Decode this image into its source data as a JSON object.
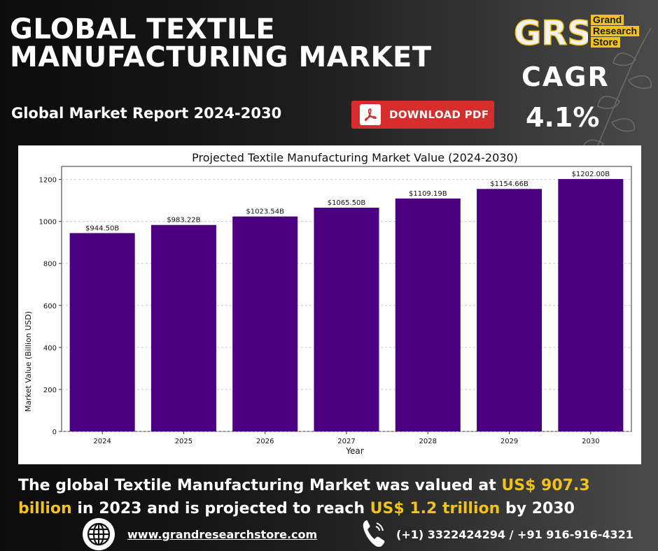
{
  "header": {
    "title_line1": "GLOBAL TEXTILE",
    "title_line2": "MANUFACTURING MARKET",
    "subtitle": "Global Market Report 2024-2030",
    "download_label": "DOWNLOAD PDF"
  },
  "logo": {
    "mark": "GRS",
    "word1": "Grand",
    "word2": "Research",
    "word3": "Store"
  },
  "cagr": {
    "label": "CAGR",
    "value": "4.1%"
  },
  "chart_data": {
    "type": "bar",
    "title": "Projected Textile Manufacturing Market Value (2024-2030)",
    "xlabel": "Year",
    "ylabel": "Market Value (Billion USD)",
    "categories": [
      "2024",
      "2025",
      "2026",
      "2027",
      "2028",
      "2029",
      "2030"
    ],
    "values": [
      944.5,
      983.22,
      1023.54,
      1065.5,
      1109.19,
      1154.66,
      1202.0
    ],
    "data_labels": [
      "$944.50B",
      "$983.22B",
      "$1023.54B",
      "$1065.50B",
      "$1109.19B",
      "$1154.66B",
      "$1202.00B"
    ],
    "yticks": [
      0,
      200,
      400,
      600,
      800,
      1000,
      1200
    ],
    "ylim": [
      0,
      1262
    ],
    "grid": true,
    "bar_color": "#4b0082"
  },
  "summary": {
    "part1": "The global Textile Manufacturing Market was valued at ",
    "value1": "US$ 907.3 billion",
    "part2": " in 2023 and is projected to reach ",
    "value2": "US$ 1.2 trillion",
    "part3": " by 2030"
  },
  "footer": {
    "website": "www.grandresearchstore.com",
    "phone": "(+1) 3322424294 / +91 916-916-4321"
  },
  "colors": {
    "accent": "#f2c21b",
    "download_button": "#d72d2d",
    "bar": "#4b0082"
  }
}
